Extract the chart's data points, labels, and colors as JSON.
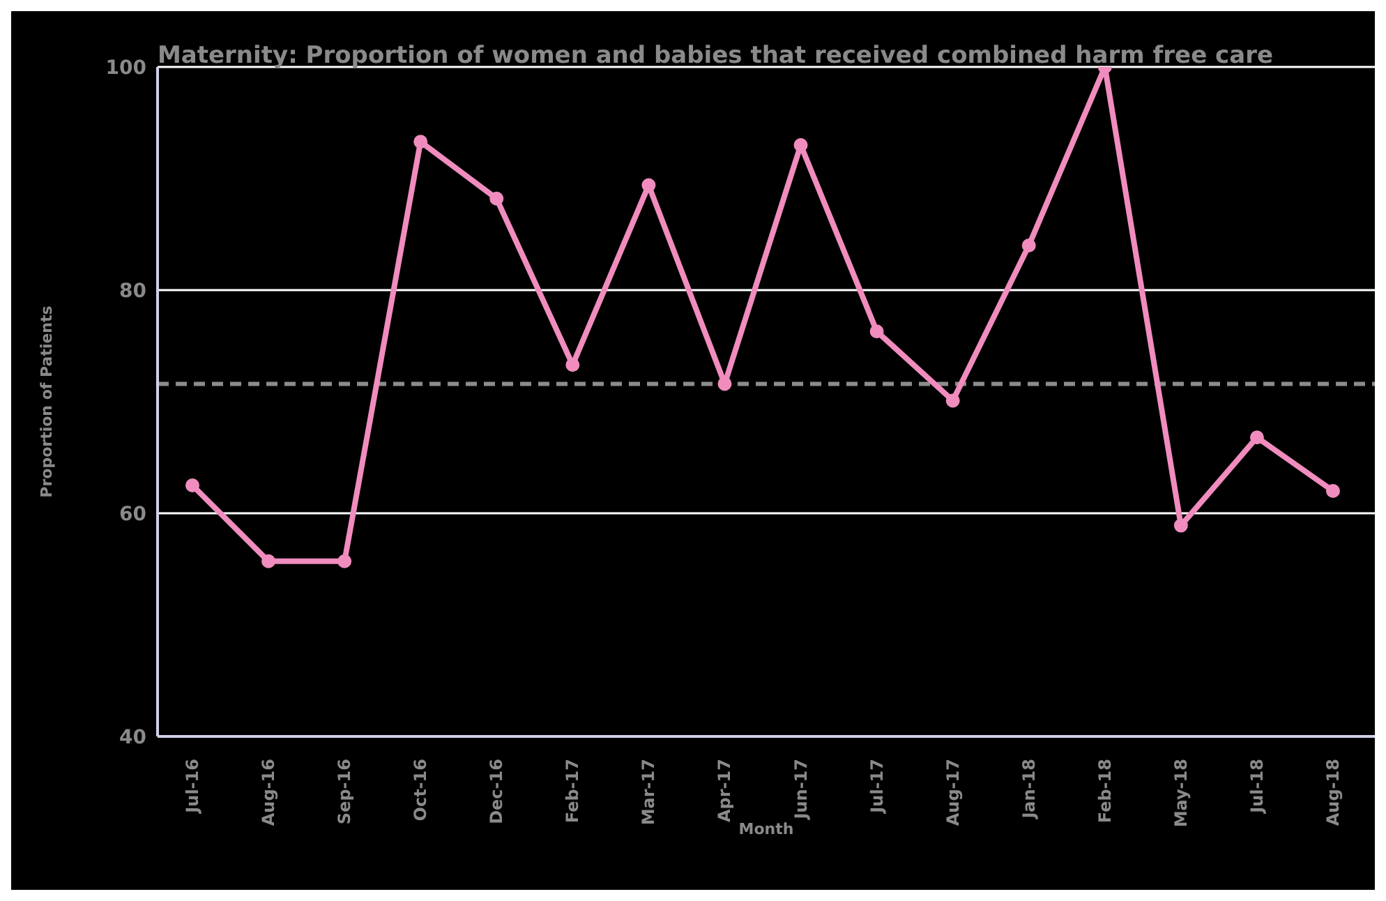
{
  "chart_data": {
    "type": "line",
    "title": "Maternity: Proportion of women and babies that received combined harm free care",
    "xlabel": "Month",
    "ylabel": "Proportion of Patients",
    "categories": [
      "Jul-16",
      "Aug-16",
      "Sep-16",
      "Oct-16",
      "Dec-16",
      "Feb-17",
      "Mar-17",
      "Apr-17",
      "Jun-17",
      "Jul-17",
      "Aug-17",
      "Jan-18",
      "Feb-18",
      "May-18",
      "Jul-18",
      "Aug-18"
    ],
    "series": [
      {
        "color": "#f08cbe",
        "values": [
          62.5,
          55.7,
          55.7,
          93.3,
          88.2,
          73.3,
          89.4,
          71.6,
          93,
          76.3,
          70.1,
          84,
          100,
          58.9,
          66.8,
          62
        ]
      }
    ],
    "ylim": [
      40,
      100
    ],
    "yticks": [
      40,
      60,
      80,
      100
    ],
    "grid": "y",
    "marker": "circle",
    "line_style": "solid",
    "ref_lines": [
      {
        "axis": "y",
        "value": 71.6,
        "color": "#8c8c8c",
        "line_style": "dashed"
      }
    ]
  }
}
